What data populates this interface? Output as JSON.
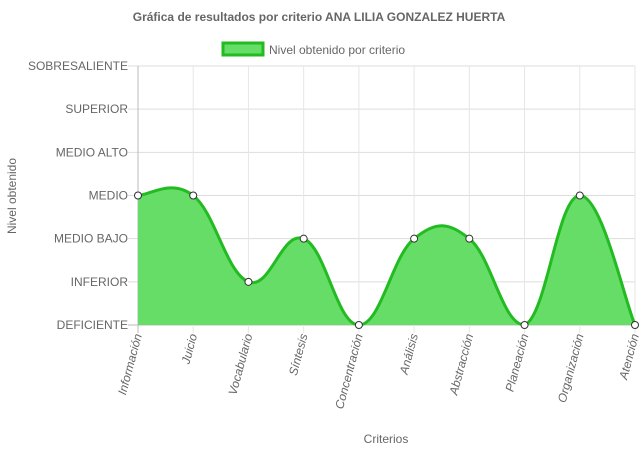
{
  "chart_data": {
    "type": "area",
    "title": "Gráfica de resultados por criterio ANA LILIA GONZALEZ HUERTA",
    "xlabel": "Criterios",
    "ylabel": "Nivel obtenido",
    "categories": [
      "Información",
      "Juicio",
      "Vocabulario",
      "Síntesis",
      "Concentración",
      "Análisis",
      "Abstracción",
      "Planeación",
      "Organización",
      "Atención"
    ],
    "y_levels": [
      "DEFICIENTE",
      "INFERIOR",
      "MEDIO BAJO",
      "MEDIO",
      "MEDIO ALTO",
      "SUPERIOR",
      "SOBRESALIENTE"
    ],
    "ylim": [
      0,
      6
    ],
    "series": [
      {
        "name": "Nivel obtenido por criterio",
        "values": [
          3,
          3,
          1,
          2,
          0,
          2,
          2,
          0,
          3,
          0
        ],
        "fill_color": "#66dd66",
        "line_color": "#22bb22"
      }
    ],
    "grid": true,
    "legend_position": "top"
  }
}
